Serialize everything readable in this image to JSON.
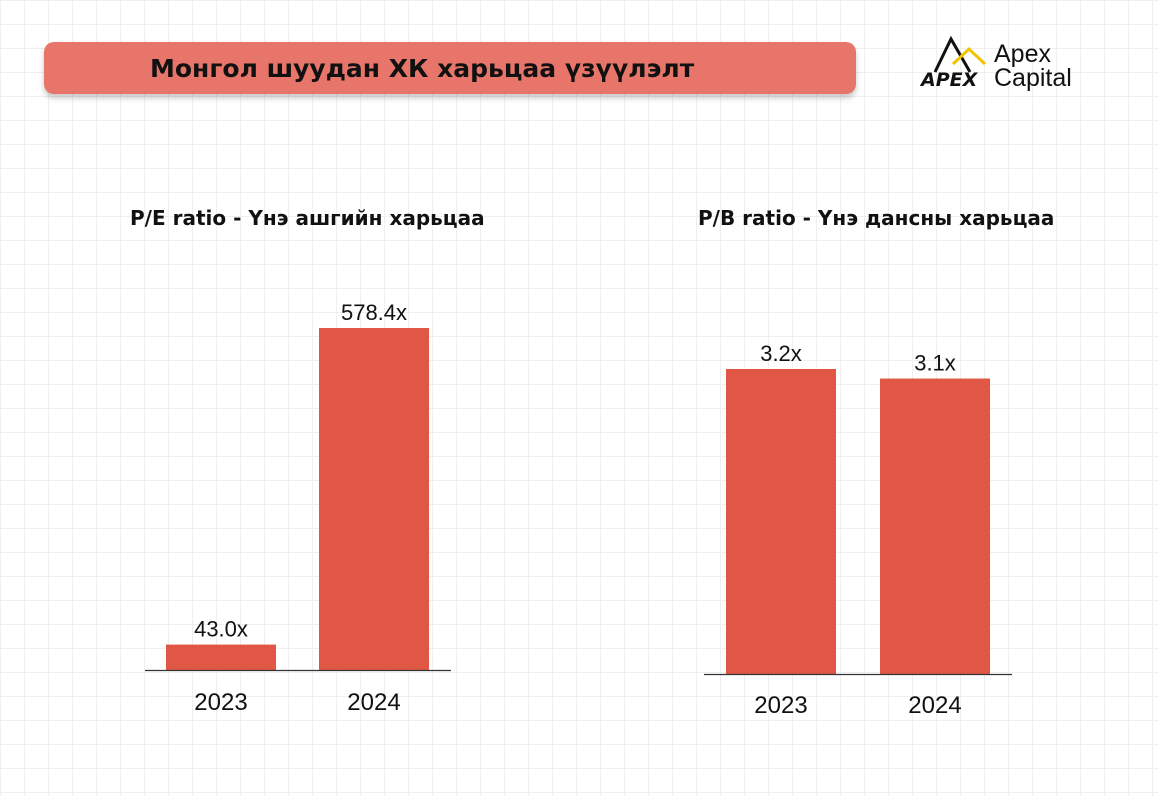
{
  "header": {
    "title": "Монгол шуудан ХК харьцаа үзүүлэлт",
    "banner_color": "#e8756a"
  },
  "brand": {
    "logo_mark": "APEX",
    "line1": "Apex",
    "line2": "Capital",
    "accent_color": "#f2c300"
  },
  "bar_color": "#e05745",
  "chart_data": [
    {
      "type": "bar",
      "title": "P/E ratio - Үнэ ашгийн харьцаа",
      "categories": [
        "2023",
        "2024"
      ],
      "values": [
        43.0,
        578.4
      ],
      "value_labels": [
        "43.0x",
        "578.4x"
      ],
      "xlabel": "",
      "ylabel": "",
      "ylim": [
        0,
        578.4
      ],
      "grid": false
    },
    {
      "type": "bar",
      "title": "P/B ratio - Үнэ дансны харьцаа",
      "categories": [
        "2023",
        "2024"
      ],
      "values": [
        3.2,
        3.1
      ],
      "value_labels": [
        "3.2x",
        "3.1x"
      ],
      "xlabel": "",
      "ylabel": "",
      "ylim": [
        0,
        3.2
      ],
      "grid": false
    }
  ]
}
